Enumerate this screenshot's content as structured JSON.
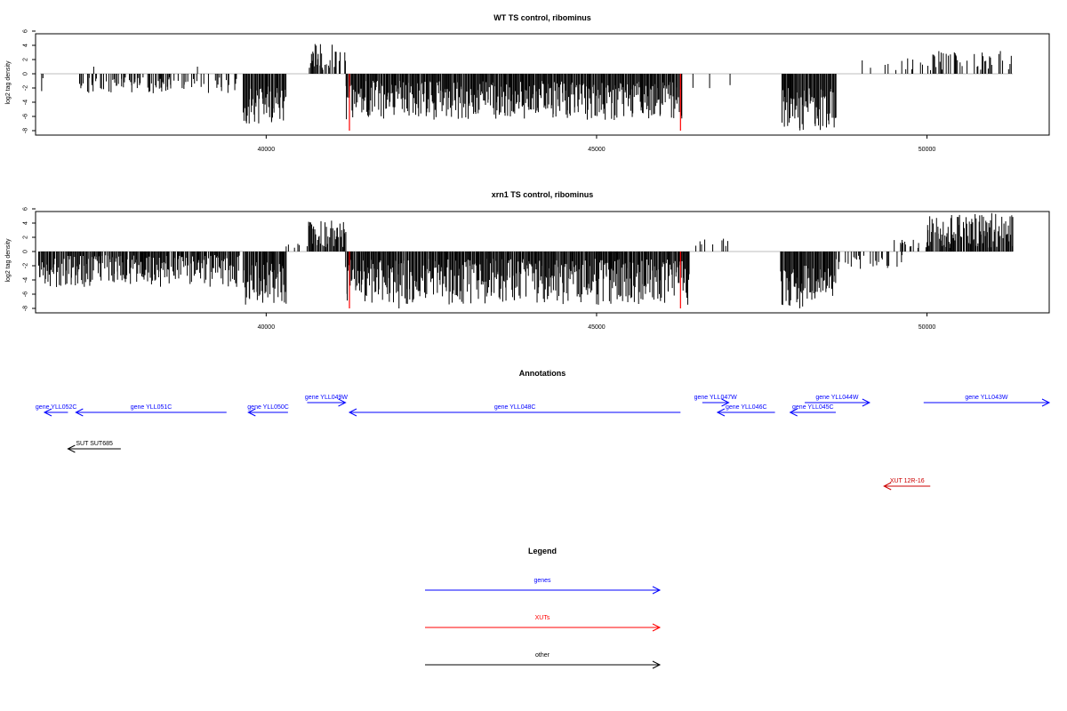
{
  "chart_data": [
    {
      "type": "bar",
      "title": "WT TS control, ribominus",
      "ylabel": "log2 tag density",
      "xlabel": "",
      "xlim": [
        36510,
        51850
      ],
      "ylim": [
        -8,
        6
      ],
      "yticks": [
        6,
        4,
        2,
        0,
        -2,
        -4,
        -6,
        -8
      ],
      "xticks": [
        40000,
        45000,
        50000
      ],
      "grid": false,
      "regions": [
        {
          "from": 36550,
          "to": 37150,
          "sign": -1,
          "min": 0.5,
          "max": 2.8,
          "density": 0.08
        },
        {
          "from": 37150,
          "to": 38600,
          "sign": -1,
          "min": 0.5,
          "max": 2.8,
          "density": 0.45
        },
        {
          "from": 38600,
          "to": 39550,
          "sign": -1,
          "min": 0.5,
          "max": 2.8,
          "density": 0.25
        },
        {
          "from": 39650,
          "to": 40300,
          "sign": -1,
          "min": 1.5,
          "max": 7.0,
          "density": 1.0
        },
        {
          "from": 40650,
          "to": 41200,
          "sign": 1,
          "min": 0.5,
          "max": 4.3,
          "density": 0.55
        },
        {
          "from": 41200,
          "to": 46300,
          "sign": -1,
          "min": 1.0,
          "max": 6.5,
          "density": 1.0
        },
        {
          "from": 46300,
          "to": 47000,
          "sign": -1,
          "min": 0.5,
          "max": 2.5,
          "density": 0.08
        },
        {
          "from": 47800,
          "to": 48620,
          "sign": -1,
          "min": 2.0,
          "max": 8.0,
          "density": 1.0
        },
        {
          "from": 49000,
          "to": 49900,
          "sign": 1,
          "min": 0.5,
          "max": 2.3,
          "density": 0.12
        },
        {
          "from": 49900,
          "to": 51300,
          "sign": 1,
          "min": 0.5,
          "max": 3.2,
          "density": 0.4
        }
      ],
      "highlights": [
        {
          "x": 41260,
          "value": -8,
          "color": "#ff0000"
        },
        {
          "x": 46270,
          "value": -8,
          "color": "#ff0000"
        }
      ],
      "extra_bars": [
        {
          "x": 37390,
          "value": 1.0
        },
        {
          "x": 38960,
          "value": 1.0
        },
        {
          "x": 47020,
          "value": -1.6
        }
      ]
    },
    {
      "type": "bar",
      "title": "xrn1 TS control, ribominus",
      "ylabel": "log2 tag density",
      "xlabel": "",
      "xlim": [
        36510,
        51850
      ],
      "ylim": [
        -8,
        6
      ],
      "yticks": [
        6,
        4,
        2,
        0,
        -2,
        -4,
        -6,
        -8
      ],
      "xticks": [
        40000,
        45000,
        50000
      ],
      "grid": false,
      "regions": [
        {
          "from": 36550,
          "to": 39600,
          "sign": -1,
          "min": 0.5,
          "max": 5.0,
          "density": 0.9
        },
        {
          "from": 39650,
          "to": 40300,
          "sign": -1,
          "min": 1.5,
          "max": 7.5,
          "density": 1.0
        },
        {
          "from": 40300,
          "to": 40500,
          "sign": 1,
          "min": 0.5,
          "max": 1.5,
          "density": 0.3
        },
        {
          "from": 40620,
          "to": 41200,
          "sign": 1,
          "min": 0.5,
          "max": 4.5,
          "density": 0.9
        },
        {
          "from": 41200,
          "to": 46400,
          "sign": -1,
          "min": 1.0,
          "max": 7.5,
          "density": 1.0
        },
        {
          "from": 46400,
          "to": 47000,
          "sign": 1,
          "min": 0.5,
          "max": 2.0,
          "density": 0.12
        },
        {
          "from": 47780,
          "to": 48620,
          "sign": -1,
          "min": 2.0,
          "max": 8.0,
          "density": 1.0
        },
        {
          "from": 48620,
          "to": 49700,
          "sign": -1,
          "min": 0.5,
          "max": 2.5,
          "density": 0.2
        },
        {
          "from": 49500,
          "to": 50000,
          "sign": 1,
          "min": 0.5,
          "max": 1.8,
          "density": 0.25
        },
        {
          "from": 50000,
          "to": 51300,
          "sign": 1,
          "min": 0.5,
          "max": 5.3,
          "density": 0.9
        }
      ],
      "highlights": [
        {
          "x": 41260,
          "value": -8,
          "color": "#ff0000"
        },
        {
          "x": 46270,
          "value": -8,
          "color": "#ff0000"
        }
      ],
      "extra_bars": [
        {
          "x": 50980,
          "value": 5.4
        },
        {
          "x": 42010,
          "value": -8
        },
        {
          "x": 46920,
          "value": 1.8
        }
      ]
    }
  ],
  "annotations": {
    "title": "Annotations",
    "features": [
      {
        "label": "gene YLL052C",
        "start": 36550,
        "end": 37000,
        "strand": "-",
        "row": 1,
        "color": "#0000ff"
      },
      {
        "label": "gene YLL051C",
        "start": 37120,
        "end": 39400,
        "strand": "-",
        "row": 1,
        "color": "#0000ff"
      },
      {
        "label": "gene YLL050C",
        "start": 39730,
        "end": 40330,
        "strand": "-",
        "row": 1,
        "color": "#0000ff"
      },
      {
        "label": "gene YLL049W",
        "start": 40620,
        "end": 41200,
        "strand": "+",
        "row": 0,
        "color": "#0000ff"
      },
      {
        "label": "gene YLL048C",
        "start": 41260,
        "end": 46270,
        "strand": "-",
        "row": 1,
        "color": "#0000ff"
      },
      {
        "label": "gene YLL047W",
        "start": 46600,
        "end": 47000,
        "strand": "+",
        "row": 0,
        "color": "#0000ff"
      },
      {
        "label": "gene YLL046C",
        "start": 46830,
        "end": 47700,
        "strand": "-",
        "row": 1,
        "color": "#0000ff"
      },
      {
        "label": "gene YLL045C",
        "start": 47930,
        "end": 48620,
        "strand": "-",
        "row": 1,
        "color": "#0000ff"
      },
      {
        "label": "gene YLL044W",
        "start": 48150,
        "end": 49130,
        "strand": "+",
        "row": 0,
        "color": "#0000ff"
      },
      {
        "label": "gene YLL043W",
        "start": 49950,
        "end": 51850,
        "strand": "+",
        "row": 0,
        "color": "#0000ff"
      },
      {
        "label": "SUT SUT685",
        "start": 37000,
        "end": 37800,
        "strand": "-",
        "row": 2,
        "color": "#000000"
      },
      {
        "label": "XUT 12R-16",
        "start": 49350,
        "end": 50050,
        "strand": "-",
        "row": 3,
        "color": "#cc0000"
      }
    ]
  },
  "legend": {
    "title": "Legend",
    "items": [
      {
        "label": "genes",
        "color": "#0000ff"
      },
      {
        "label": "XUTs",
        "color": "#ff0000"
      },
      {
        "label": "other",
        "color": "#000000"
      }
    ]
  }
}
